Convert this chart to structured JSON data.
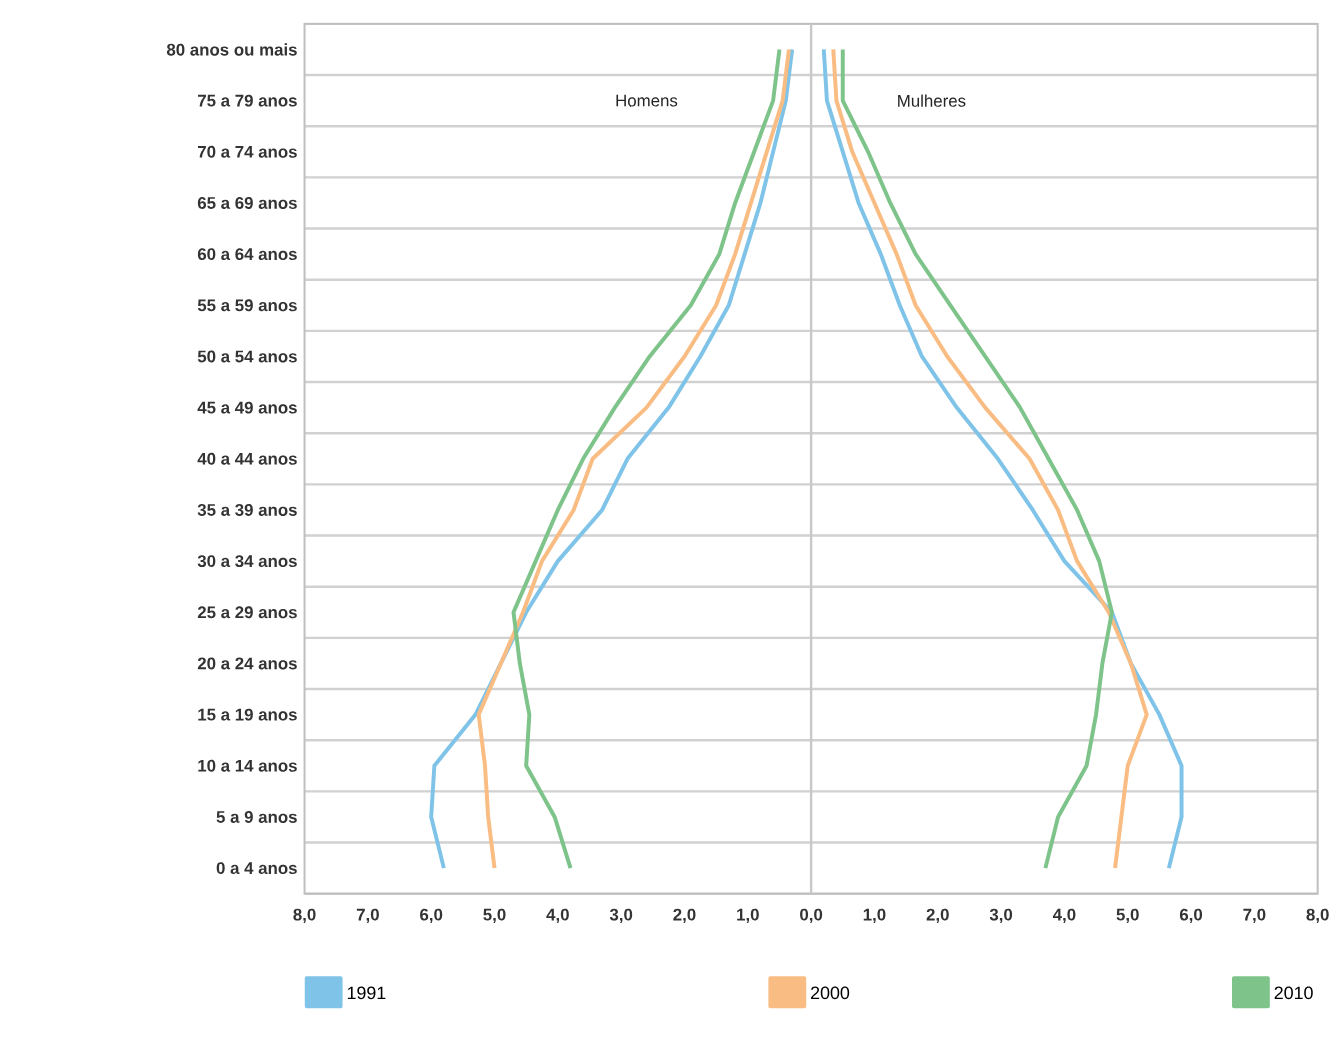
{
  "chart_data": {
    "type": "line",
    "orientation": "horizontal",
    "categories": [
      "80 anos ou mais",
      "75 a 79 anos",
      "70 a 74 anos",
      "65 a 69 anos",
      "60 a 64 anos",
      "55 a 59 anos",
      "50 a 54 anos",
      "45 a 49 anos",
      "40 a 44 anos",
      "35 a 39 anos",
      "30 a 34 anos",
      "25 a 29 anos",
      "20 a 24 anos",
      "15 a 19 anos",
      "10 a 14 anos",
      "5 a 9 anos",
      "0 a 4 anos"
    ],
    "series": [
      {
        "name": "1991",
        "color": "#7fc4e8",
        "values": [
          -0.3,
          -0.4,
          -0.6,
          -0.8,
          -1.05,
          -1.3,
          -1.75,
          -2.25,
          -2.9,
          -3.3,
          -4.0,
          -4.5,
          -4.9,
          -5.3,
          -5.95,
          -6.0,
          -5.8
        ]
      },
      {
        "color": "#7fc4e8",
        "values": [
          0.2,
          0.25,
          0.5,
          0.75,
          1.1,
          1.4,
          1.75,
          2.3,
          2.95,
          3.5,
          4.0,
          4.75,
          5.05,
          5.5,
          5.85,
          5.85,
          5.65
        ]
      },
      {
        "name": "2000",
        "color": "#f9bc82",
        "values": [
          -0.35,
          -0.45,
          -0.7,
          -0.95,
          -1.2,
          -1.5,
          -2.0,
          -2.6,
          -3.45,
          -3.75,
          -4.25,
          -4.55,
          -4.9,
          -5.25,
          -5.15,
          -5.1,
          -5.0
        ]
      },
      {
        "color": "#f9bc82",
        "values": [
          0.35,
          0.4,
          0.65,
          1.0,
          1.35,
          1.65,
          2.15,
          2.75,
          3.45,
          3.9,
          4.2,
          4.7,
          5.05,
          5.3,
          5.0,
          4.9,
          4.8
        ]
      },
      {
        "name": "2010",
        "color": "#7ec48a",
        "values": [
          -0.5,
          -0.6,
          -0.9,
          -1.2,
          -1.45,
          -1.9,
          -2.55,
          -3.1,
          -3.6,
          -4.0,
          -4.35,
          -4.7,
          -4.6,
          -4.45,
          -4.5,
          -4.05,
          -3.8
        ]
      },
      {
        "color": "#7ec48a",
        "values": [
          0.5,
          0.5,
          0.9,
          1.25,
          1.65,
          2.2,
          2.75,
          3.3,
          3.75,
          4.2,
          4.55,
          4.75,
          4.6,
          4.5,
          4.35,
          3.9,
          3.7
        ]
      }
    ],
    "xlim": [
      -8,
      8
    ],
    "xticks": [
      {
        "value": -8,
        "label": "8,0"
      },
      {
        "value": -7,
        "label": "7,0"
      },
      {
        "value": -6,
        "label": "6,0"
      },
      {
        "value": -5,
        "label": "5,0"
      },
      {
        "value": -4,
        "label": "4,0"
      },
      {
        "value": -3,
        "label": "3,0"
      },
      {
        "value": -2,
        "label": "2,0"
      },
      {
        "value": -1,
        "label": "1,0"
      },
      {
        "value": 0,
        "label": "0,0"
      },
      {
        "value": 1,
        "label": "1,0"
      },
      {
        "value": 2,
        "label": "2,0"
      },
      {
        "value": 3,
        "label": "3,0"
      },
      {
        "value": 4,
        "label": "4,0"
      },
      {
        "value": 5,
        "label": "5,0"
      },
      {
        "value": 6,
        "label": "6,0"
      },
      {
        "value": 7,
        "label": "7,0"
      },
      {
        "value": 8,
        "label": "8,0"
      }
    ],
    "annotations": [
      "Homens",
      "Mulheres"
    ],
    "ref_lines": [
      {
        "axis": "x",
        "value": 0,
        "color": "#c8c8c8"
      }
    ],
    "grid": "y",
    "legend": "bottom",
    "marker": "none",
    "line_style": "solid"
  }
}
